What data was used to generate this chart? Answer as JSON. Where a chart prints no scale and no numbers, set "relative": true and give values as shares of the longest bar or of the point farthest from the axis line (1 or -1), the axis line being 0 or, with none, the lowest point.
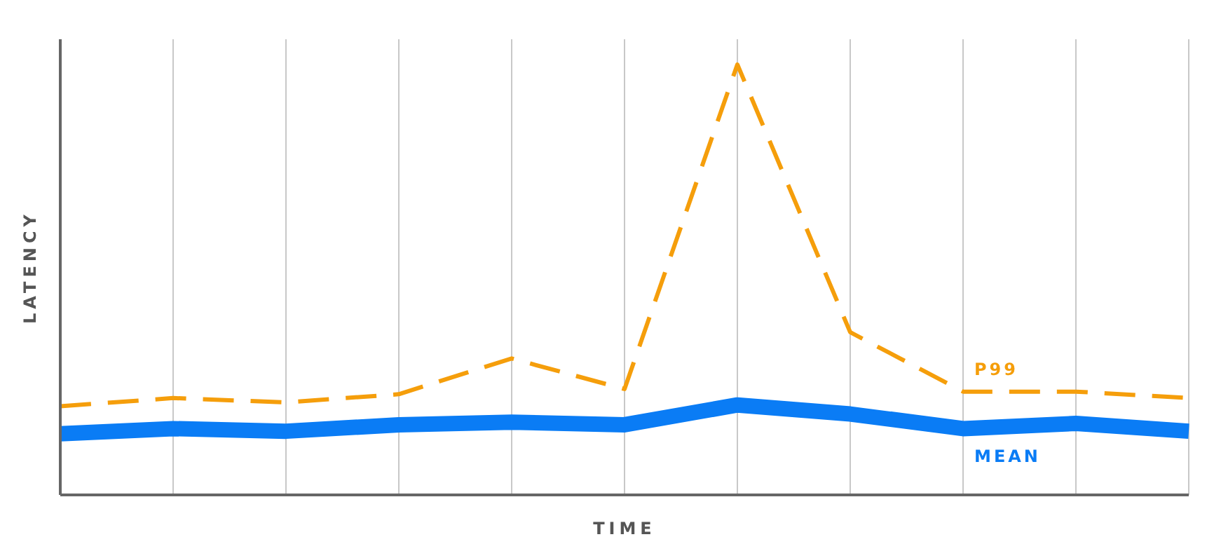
{
  "chart_data": {
    "type": "line",
    "relative": true,
    "xlabel": "TIME",
    "ylabel": "LATENCY",
    "categories": [
      null,
      null,
      null,
      null,
      null,
      null,
      null,
      null,
      null,
      null,
      null
    ],
    "grid": "x",
    "legend": false,
    "marker": "none",
    "series": [
      {
        "name": "P99",
        "color": "#f59e0b",
        "line_style": "dashed",
        "values": [
          0.206,
          0.225,
          0.215,
          0.234,
          0.317,
          0.246,
          1,
          0.378,
          0.24,
          0.24,
          0.225
        ]
      },
      {
        "name": "MEAN",
        "color": "#0a7cf5",
        "line_style": "solid",
        "values": [
          0.142,
          0.154,
          0.148,
          0.163,
          0.169,
          0.163,
          0.209,
          0.188,
          0.154,
          0.166,
          0.148
        ]
      }
    ]
  }
}
